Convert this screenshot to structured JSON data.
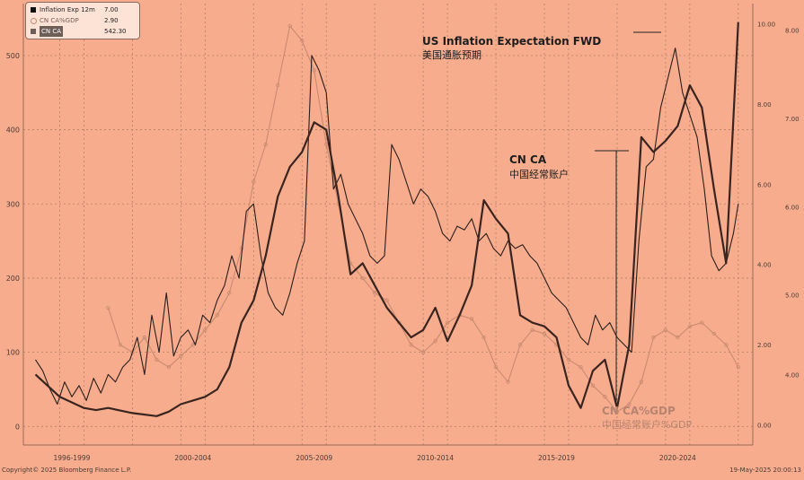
{
  "chart_data": {
    "type": "line",
    "title": "",
    "legend": {
      "placement": "top-left",
      "entries": [
        {
          "name": "Inflation Exp 12m",
          "value": "7.00",
          "color": "#111111",
          "swatch": "square"
        },
        {
          "name": "CN CA%GDP",
          "value": "2.90",
          "color": "#c98a6f",
          "swatch": "circle"
        },
        {
          "name": "CN CA",
          "value": "542.30",
          "color": "#6e5e58",
          "swatch": "square-highlight"
        }
      ]
    },
    "annotations": [
      {
        "id": "us",
        "line1": "US Inflation Expectation FWD",
        "line2": "美国通胀预期"
      },
      {
        "id": "cnca",
        "line1": "CN CA",
        "line2": "中国经常账户"
      },
      {
        "id": "cagdp",
        "line1": "CN CA%GDP",
        "line2": "中国经常账户%GDP"
      }
    ],
    "x_tick_labels": [
      "1996-1999",
      "2000-2004",
      "2005-2009",
      "2010-2014",
      "2015-2019",
      "2020-2024"
    ],
    "left_axis": {
      "ticks": [
        "0",
        "100",
        "200",
        "300",
        "400",
        "500"
      ],
      "range": [
        -25,
        570
      ]
    },
    "right_axis_inner": {
      "ticks": [
        "0.00",
        "2.00",
        "4.00",
        "6.00",
        "8.00",
        "10.00"
      ],
      "range": [
        -0.5,
        10.5
      ]
    },
    "right_axis_outer": {
      "ticks": [
        "4.00",
        "5.00",
        "6.00",
        "7.00",
        "8.00"
      ]
    },
    "grid": true,
    "footer_left": "Copyright© 2025 Bloomberg Finance L.P.",
    "footer_right": "19-May-2025 20:00:13",
    "series": [
      {
        "name": "CN CA",
        "style": "thick",
        "color": "#3a2420",
        "axis": "left",
        "x": [
          1996.0,
          1997.0,
          1998.0,
          1998.5,
          1999.0,
          2000.0,
          2001.0,
          2001.5,
          2002.0,
          2002.5,
          2003.0,
          2003.5,
          2004.0,
          2004.5,
          2005.0,
          2005.5,
          2006.0,
          2006.5,
          2007.0,
          2007.5,
          2008.0,
          2008.5,
          2009.0,
          2009.5,
          2010.0,
          2010.5,
          2011.0,
          2011.5,
          2012.0,
          2012.5,
          2013.0,
          2013.5,
          2014.0,
          2014.5,
          2015.0,
          2015.5,
          2016.0,
          2016.5,
          2017.0,
          2017.5,
          2018.0,
          2018.5,
          2019.0,
          2019.5,
          2020.0,
          2020.5,
          2021.0,
          2021.5,
          2022.0,
          2022.5,
          2023.0,
          2023.5,
          2024.0,
          2024.5,
          2025.0
        ],
        "values": [
          70,
          40,
          25,
          22,
          25,
          18,
          14,
          20,
          30,
          35,
          40,
          50,
          80,
          140,
          170,
          230,
          310,
          350,
          370,
          410,
          400,
          310,
          205,
          220,
          190,
          160,
          140,
          120,
          130,
          160,
          115,
          150,
          190,
          305,
          280,
          260,
          150,
          140,
          135,
          120,
          55,
          25,
          75,
          90,
          25,
          110,
          390,
          370,
          385,
          405,
          460,
          430,
          320,
          220,
          545
        ]
      },
      {
        "name": "Inflation Exp 12m",
        "style": "thin-black",
        "color": "#2c1e1c",
        "axis": "left",
        "x": [
          1996.0,
          1996.3,
          1996.6,
          1996.9,
          1997.2,
          1997.5,
          1997.8,
          1998.1,
          1998.4,
          1998.7,
          1999.0,
          1999.3,
          1999.6,
          1999.9,
          2000.2,
          2000.5,
          2000.8,
          2001.1,
          2001.4,
          2001.7,
          2002.0,
          2002.3,
          2002.6,
          2002.9,
          2003.2,
          2003.5,
          2003.8,
          2004.1,
          2004.4,
          2004.7,
          2005.0,
          2005.3,
          2005.6,
          2005.9,
          2006.2,
          2006.5,
          2006.8,
          2007.1,
          2007.4,
          2007.7,
          2008.0,
          2008.3,
          2008.6,
          2008.9,
          2009.2,
          2009.5,
          2009.8,
          2010.1,
          2010.4,
          2010.7,
          2011.0,
          2011.3,
          2011.6,
          2011.9,
          2012.2,
          2012.5,
          2012.8,
          2013.1,
          2013.4,
          2013.7,
          2014.0,
          2014.3,
          2014.6,
          2014.9,
          2015.2,
          2015.5,
          2015.8,
          2016.1,
          2016.4,
          2016.7,
          2017.0,
          2017.3,
          2017.6,
          2017.9,
          2018.2,
          2018.5,
          2018.8,
          2019.1,
          2019.4,
          2019.7,
          2020.0,
          2020.3,
          2020.6,
          2020.9,
          2021.2,
          2021.5,
          2021.8,
          2022.1,
          2022.4,
          2022.7,
          2023.0,
          2023.3,
          2023.6,
          2023.9,
          2024.2,
          2024.5,
          2024.8,
          2025.0
        ],
        "values": [
          90,
          75,
          50,
          30,
          60,
          40,
          55,
          35,
          65,
          45,
          70,
          60,
          80,
          90,
          120,
          70,
          150,
          100,
          180,
          95,
          120,
          130,
          110,
          150,
          140,
          170,
          190,
          230,
          200,
          290,
          300,
          230,
          180,
          160,
          150,
          180,
          220,
          250,
          500,
          480,
          450,
          320,
          340,
          300,
          280,
          260,
          230,
          220,
          230,
          380,
          360,
          330,
          300,
          320,
          310,
          290,
          260,
          250,
          270,
          265,
          280,
          250,
          260,
          240,
          230,
          250,
          240,
          245,
          230,
          220,
          200,
          180,
          170,
          160,
          140,
          120,
          110,
          150,
          130,
          140,
          120,
          110,
          100,
          250,
          350,
          360,
          430,
          470,
          510,
          450,
          420,
          390,
          320,
          230,
          210,
          220,
          260,
          300
        ]
      },
      {
        "name": "CN CA%GDP",
        "style": "thin-circle",
        "color": "#c98a6f",
        "axis": "left",
        "x": [
          1999.0,
          1999.5,
          2000.0,
          2000.5,
          2001.0,
          2001.5,
          2002.0,
          2002.5,
          2003.0,
          2003.5,
          2004.0,
          2004.5,
          2005.0,
          2005.5,
          2006.0,
          2006.5,
          2007.0,
          2007.5,
          2008.0,
          2008.5,
          2009.0,
          2009.5,
          2010.0,
          2010.5,
          2011.0,
          2011.5,
          2012.0,
          2012.5,
          2013.0,
          2013.5,
          2014.0,
          2014.5,
          2015.0,
          2015.5,
          2016.0,
          2016.5,
          2017.0,
          2017.5,
          2018.0,
          2018.5,
          2019.0,
          2019.5,
          2020.0,
          2020.5,
          2021.0,
          2021.5,
          2022.0,
          2022.5,
          2023.0,
          2023.5,
          2024.0,
          2024.5,
          2025.0
        ],
        "values": [
          160,
          110,
          100,
          120,
          90,
          80,
          95,
          110,
          130,
          150,
          180,
          240,
          330,
          380,
          460,
          540,
          520,
          480,
          380,
          300,
          220,
          200,
          180,
          170,
          140,
          110,
          100,
          115,
          140,
          150,
          145,
          120,
          80,
          60,
          110,
          130,
          125,
          110,
          90,
          80,
          55,
          40,
          20,
          30,
          60,
          120,
          130,
          120,
          135,
          140,
          125,
          110,
          80
        ]
      }
    ]
  }
}
